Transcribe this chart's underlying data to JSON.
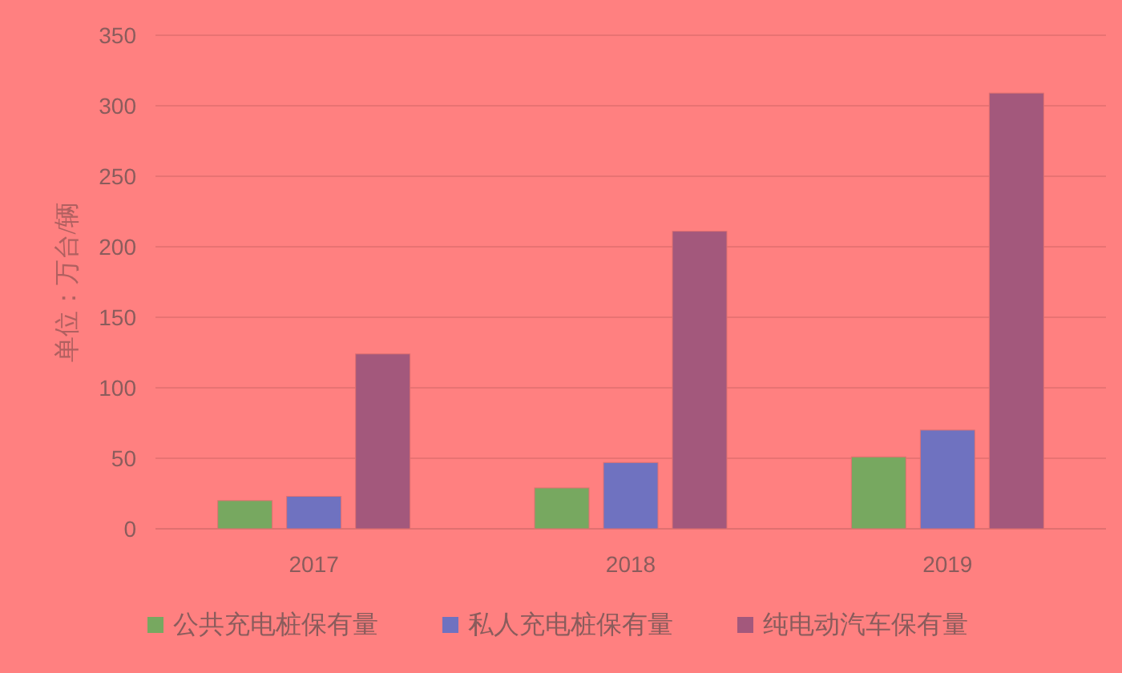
{
  "chart_data": {
    "type": "bar",
    "ylabel": "单位：万台/辆",
    "categories": [
      "2017",
      "2018",
      "2019"
    ],
    "series": [
      {
        "name": "公共充电桩保有量",
        "color": "#77a860",
        "values": [
          20,
          29,
          51
        ]
      },
      {
        "name": "私人充电桩保有量",
        "color": "#6f72c0",
        "values": [
          23,
          47,
          70
        ]
      },
      {
        "name": "纯电动汽车保有量",
        "color": "#a3587c",
        "values": [
          124,
          211,
          309
        ]
      }
    ],
    "ylim": [
      0,
      350
    ],
    "yticks": [
      0,
      50,
      100,
      150,
      200,
      250,
      300,
      350
    ],
    "grid": "y",
    "legend": "bottom"
  }
}
